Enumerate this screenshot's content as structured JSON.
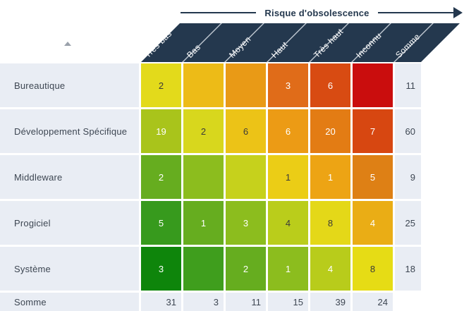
{
  "accent_colors": {
    "navy": "#24384e",
    "panel": "#e9edf4",
    "grid_text": "#3d4652",
    "header_divider": "#c2cad3",
    "sort_icon": "#9aa1ab",
    "dark_cell_text": "#3a3a3a",
    "light_cell_text": "#ffffff"
  },
  "icons": {
    "risk_arrow": "arrow-right-head",
    "sort": "triangle-up"
  },
  "axis": {
    "label": "Risque d'obsolescence"
  },
  "columns": [
    "Très bas",
    "Bas",
    "Moyen",
    "Haut",
    "Très haut",
    "Inconnu",
    "Somme"
  ],
  "rows": [
    {
      "label": "Bureautique",
      "cells": [
        {
          "v": "2",
          "bg": "#e3da1b",
          "fg": "#3a3a3a"
        },
        {
          "v": "",
          "bg": "#edbb17",
          "fg": "#ffffff"
        },
        {
          "v": "",
          "bg": "#e99a16",
          "fg": "#ffffff"
        },
        {
          "v": "3",
          "bg": "#e06c19",
          "fg": "#ffffff"
        },
        {
          "v": "6",
          "bg": "#d84b12",
          "fg": "#ffffff"
        },
        {
          "v": "",
          "bg": "#ca0d0d",
          "fg": "#ffffff"
        }
      ],
      "sum": "11"
    },
    {
      "label": "Développement Spécifique",
      "cells": [
        {
          "v": "19",
          "bg": "#a9c41b",
          "fg": "#ffffff"
        },
        {
          "v": "2",
          "bg": "#d8d71d",
          "fg": "#3a3a3a"
        },
        {
          "v": "6",
          "bg": "#ecc317",
          "fg": "#3a3a3a"
        },
        {
          "v": "6",
          "bg": "#ec9b15",
          "fg": "#ffffff"
        },
        {
          "v": "20",
          "bg": "#e37c14",
          "fg": "#ffffff"
        },
        {
          "v": "7",
          "bg": "#d74711",
          "fg": "#ffffff"
        }
      ],
      "sum": "60"
    },
    {
      "label": "Middleware",
      "cells": [
        {
          "v": "2",
          "bg": "#66ad1f",
          "fg": "#ffffff"
        },
        {
          "v": "",
          "bg": "#8cbd1e",
          "fg": "#ffffff"
        },
        {
          "v": "",
          "bg": "#c6d11c",
          "fg": "#3a3a3a"
        },
        {
          "v": "1",
          "bg": "#ebcd16",
          "fg": "#3a3a3a"
        },
        {
          "v": "1",
          "bg": "#eda414",
          "fg": "#ffffff"
        },
        {
          "v": "5",
          "bg": "#de8015",
          "fg": "#ffffff"
        }
      ],
      "sum": "9"
    },
    {
      "label": "Progiciel",
      "cells": [
        {
          "v": "5",
          "bg": "#379a1d",
          "fg": "#ffffff"
        },
        {
          "v": "1",
          "bg": "#66ad1f",
          "fg": "#ffffff"
        },
        {
          "v": "3",
          "bg": "#8cbd1e",
          "fg": "#ffffff"
        },
        {
          "v": "4",
          "bg": "#bacd1b",
          "fg": "#3a3a3a"
        },
        {
          "v": "8",
          "bg": "#e4d818",
          "fg": "#3a3a3a"
        },
        {
          "v": "4",
          "bg": "#eaad15",
          "fg": "#ffffff"
        }
      ],
      "sum": "25"
    },
    {
      "label": "Système",
      "cells": [
        {
          "v": "3",
          "bg": "#0e850b",
          "fg": "#ffffff"
        },
        {
          "v": "",
          "bg": "#3f9e1d",
          "fg": "#ffffff"
        },
        {
          "v": "2",
          "bg": "#66ad1f",
          "fg": "#ffffff"
        },
        {
          "v": "1",
          "bg": "#8cbd1e",
          "fg": "#ffffff"
        },
        {
          "v": "4",
          "bg": "#b8cc1b",
          "fg": "#ffffff"
        },
        {
          "v": "8",
          "bg": "#e6dc15",
          "fg": "#3a3a3a"
        }
      ],
      "sum": "18"
    }
  ],
  "footer": {
    "label": "Somme",
    "values": [
      "31",
      "3",
      "11",
      "15",
      "39",
      "24"
    ],
    "sum": ""
  },
  "chart_data": {
    "type": "heatmap",
    "title": "Risque d'obsolescence",
    "x_categories": [
      "Très bas",
      "Bas",
      "Moyen",
      "Haut",
      "Très haut",
      "Inconnu"
    ],
    "y_categories": [
      "Bureautique",
      "Développement Spécifique",
      "Middleware",
      "Progiciel",
      "Système"
    ],
    "values": [
      [
        2,
        null,
        null,
        3,
        6,
        null
      ],
      [
        19,
        2,
        6,
        6,
        20,
        7
      ],
      [
        2,
        null,
        null,
        1,
        1,
        5
      ],
      [
        5,
        1,
        3,
        4,
        8,
        4
      ],
      [
        3,
        null,
        2,
        1,
        4,
        8
      ]
    ],
    "row_totals": [
      11,
      60,
      9,
      25,
      18
    ],
    "col_totals": [
      31,
      3,
      11,
      15,
      39,
      24
    ],
    "total_label": "Somme",
    "color_scale": "green-to-red (low risk to high risk)",
    "legend_position": "none"
  }
}
